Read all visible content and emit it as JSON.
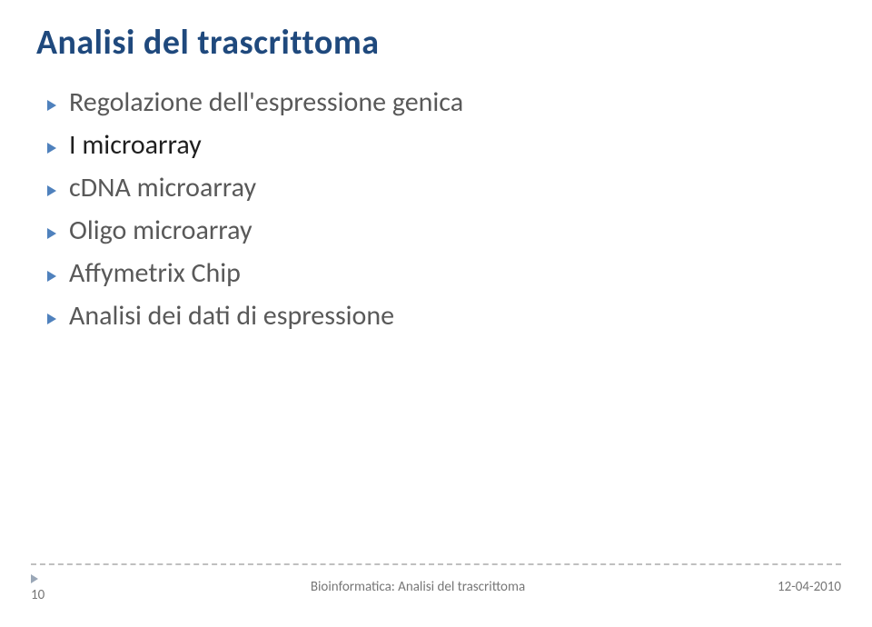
{
  "title": "Analisi del trascrittoma",
  "bullets": [
    {
      "text": "Regolazione dell'espressione genica",
      "current": false
    },
    {
      "text": "I microarray",
      "current": true
    },
    {
      "text": "cDNA microarray",
      "current": false
    },
    {
      "text": "Oligo microarray",
      "current": false
    },
    {
      "text": "Affymetrix Chip",
      "current": false
    },
    {
      "text": "Analisi dei dati di espressione",
      "current": false
    }
  ],
  "footer": {
    "page": "10",
    "center": "Bioinformatica: Analisi del trascrittoma",
    "right": "12-04-2010"
  },
  "colors": {
    "title": "#1f497d",
    "bullet_arrow": "#4f81bd",
    "text_normal": "#595959",
    "text_current": "#1f1f1f",
    "dash": "#bfbfbf",
    "footer_text": "#777777",
    "footer_tri": "#9aa7b7",
    "background": "#ffffff"
  },
  "fonts": {
    "title_size_pt": 28,
    "bullet_size_pt": 22,
    "footer_size_pt": 11
  }
}
